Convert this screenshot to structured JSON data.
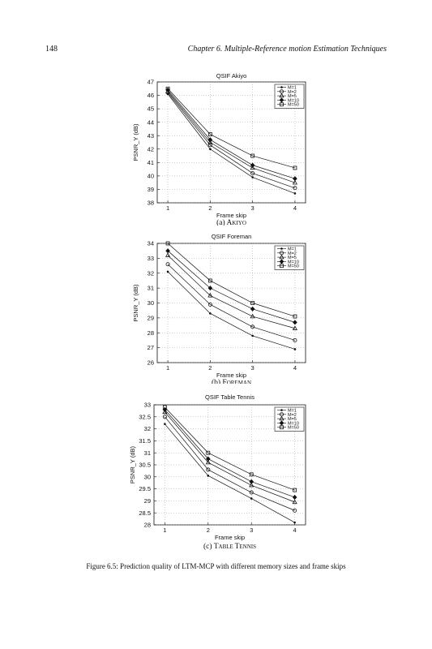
{
  "header": {
    "page_number": "148",
    "chapter_title": "Chapter 6.  Multiple-Reference motion Estimation Techniques"
  },
  "figure_caption": "Figure 6.5: Prediction quality of LTM-MCP with different memory sizes and frame skips",
  "chart_data": [
    {
      "type": "line",
      "title": "QSIF Akiyo",
      "subcaption": "(a) AKIYO",
      "xlabel": "Frame skip",
      "ylabel": "PSNR_Y (dB)",
      "x": [
        1,
        2,
        3,
        4
      ],
      "xticks": [
        "1",
        "2",
        "3",
        "4"
      ],
      "ylim": [
        38,
        47
      ],
      "yticks": [
        "38",
        "39",
        "40",
        "41",
        "42",
        "43",
        "44",
        "45",
        "46",
        "47"
      ],
      "grid": true,
      "legend_position": "top-right",
      "series": [
        {
          "name": "M=1",
          "marker": "dot",
          "values": [
            46.1,
            42.0,
            39.9,
            38.7
          ]
        },
        {
          "name": "M=2",
          "marker": "circle",
          "values": [
            46.2,
            42.3,
            40.2,
            39.1
          ]
        },
        {
          "name": "M=5",
          "marker": "triangle",
          "values": [
            46.3,
            42.5,
            40.6,
            39.5
          ]
        },
        {
          "name": "M=10",
          "marker": "diamond",
          "values": [
            46.4,
            42.7,
            40.8,
            39.8
          ]
        },
        {
          "name": "M=50",
          "marker": "square",
          "values": [
            46.5,
            43.1,
            41.5,
            40.6
          ]
        }
      ]
    },
    {
      "type": "line",
      "title": "QSIF Foreman",
      "subcaption": "(b) FOREMAN",
      "xlabel": "Frame skip",
      "ylabel": "PSNR_Y (dB)",
      "x": [
        1,
        2,
        3,
        4
      ],
      "xticks": [
        "1",
        "2",
        "3",
        "4"
      ],
      "ylim": [
        26,
        34
      ],
      "yticks": [
        "26",
        "27",
        "28",
        "29",
        "30",
        "31",
        "32",
        "33",
        "34"
      ],
      "grid": true,
      "legend_position": "top-right",
      "series": [
        {
          "name": "M=1",
          "marker": "dot",
          "values": [
            32.1,
            29.3,
            27.8,
            26.9
          ]
        },
        {
          "name": "M=2",
          "marker": "circle",
          "values": [
            32.6,
            29.9,
            28.4,
            27.5
          ]
        },
        {
          "name": "M=5",
          "marker": "triangle",
          "values": [
            33.2,
            30.5,
            29.1,
            28.3
          ]
        },
        {
          "name": "M=10",
          "marker": "diamond",
          "values": [
            33.5,
            31.0,
            29.6,
            28.7
          ]
        },
        {
          "name": "M=50",
          "marker": "square",
          "values": [
            34.0,
            31.5,
            30.0,
            29.1
          ]
        }
      ]
    },
    {
      "type": "line",
      "title": "QSIF Table Tennis",
      "subcaption": "(c) TABLE TENNIS",
      "xlabel": "Frame skip",
      "ylabel": "PSNR_Y (dB)",
      "x": [
        1,
        2,
        3,
        4
      ],
      "xticks": [
        "1",
        "2",
        "3",
        "4"
      ],
      "ylim": [
        28,
        33
      ],
      "yticks": [
        "28",
        "28.5",
        "29",
        "29.5",
        "30",
        "30.5",
        "31",
        "31.5",
        "32",
        "32.5",
        "33"
      ],
      "grid": true,
      "legend_position": "top-right",
      "series": [
        {
          "name": "M=1",
          "marker": "dot",
          "values": [
            32.2,
            30.05,
            29.1,
            28.1
          ]
        },
        {
          "name": "M=2",
          "marker": "circle",
          "values": [
            32.5,
            30.3,
            29.35,
            28.6
          ]
        },
        {
          "name": "M=5",
          "marker": "triangle",
          "values": [
            32.7,
            30.6,
            29.65,
            28.95
          ]
        },
        {
          "name": "M=10",
          "marker": "diamond",
          "values": [
            32.8,
            30.75,
            29.8,
            29.15
          ]
        },
        {
          "name": "M=50",
          "marker": "square",
          "values": [
            32.9,
            31.0,
            30.1,
            29.45
          ]
        }
      ]
    }
  ]
}
